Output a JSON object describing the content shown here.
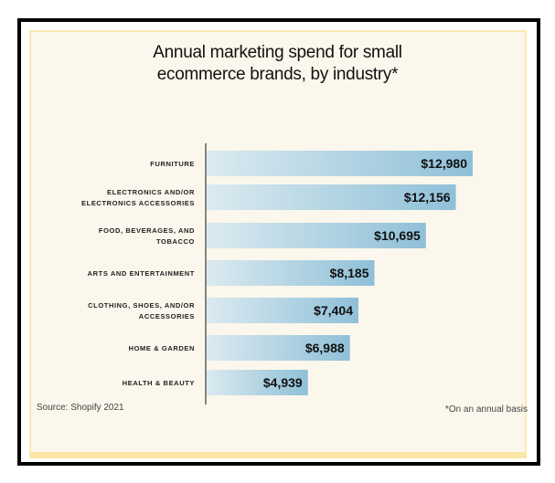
{
  "chart_data": {
    "type": "bar",
    "orientation": "horizontal",
    "title": "Annual marketing spend for small ecommerce brands, by industry*",
    "title_lines": [
      "Annual marketing spend for small",
      "ecommerce brands, by industry*"
    ],
    "categories": [
      [
        "FURNITURE"
      ],
      [
        "ELECTRONICS AND/OR",
        "ELECTRONICS ACCESSORIES"
      ],
      [
        "FOOD, BEVERAGES, AND",
        "TOBACCO"
      ],
      [
        "ARTS AND ENTERTAINMENT"
      ],
      [
        "CLOTHING, SHOES, AND/OR",
        "ACCESSORIES"
      ],
      [
        "HOME & GARDEN"
      ],
      [
        "HEALTH & BEAUTY"
      ]
    ],
    "values": [
      12980,
      12156,
      10695,
      8185,
      7404,
      6988,
      4939
    ],
    "value_labels": [
      "$12,980",
      "$12,156",
      "$10,695",
      "$8,185",
      "$7,404",
      "$6,988",
      "$4,939"
    ],
    "xlabel": "",
    "ylabel": "",
    "grid": false,
    "colors": {
      "bar_start": "#dbeaf0",
      "bar_end": "#8fc0d8",
      "background": "#fbf7ec",
      "frame": "#000000"
    }
  },
  "source": "Source: Shopify 2021",
  "footnote": "*On an annual basis"
}
